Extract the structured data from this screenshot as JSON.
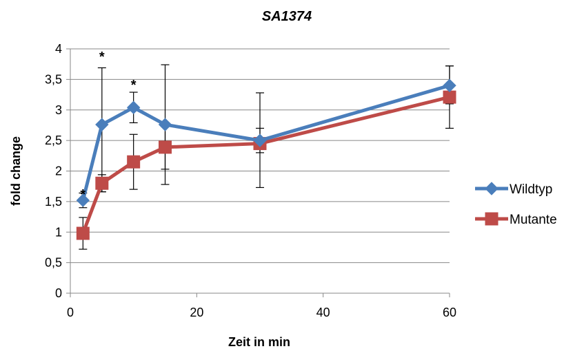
{
  "chart_data": {
    "type": "line",
    "title": "SA1374",
    "xlabel": "Zeit in min",
    "ylabel": "fold change",
    "xlim": [
      0,
      60
    ],
    "ylim": [
      0,
      4
    ],
    "x_ticks": [
      "0",
      "20",
      "40",
      "60"
    ],
    "y_ticks": [
      "0",
      "0,5",
      "1",
      "1,5",
      "2",
      "2,5",
      "3",
      "3,5",
      "4"
    ],
    "grid": true,
    "legend_position": "right",
    "series": [
      {
        "name": "Wildtyp",
        "color": "#4a7ebb",
        "marker": "diamond",
        "x": [
          2,
          5,
          10,
          15,
          30,
          60
        ],
        "y": [
          1.52,
          2.76,
          3.04,
          2.76,
          2.5,
          3.4
        ],
        "err_low": [
          0.12,
          1.1,
          0.25,
          0.98,
          0.2,
          0.3
        ],
        "err_high": [
          0.12,
          0.93,
          0.25,
          0.98,
          0.2,
          0.32
        ]
      },
      {
        "name": "Mutante",
        "color": "#be4b48",
        "marker": "square",
        "x": [
          2,
          5,
          10,
          15,
          30,
          60
        ],
        "y": [
          0.98,
          1.8,
          2.15,
          2.39,
          2.45,
          3.21
        ],
        "err_low": [
          0.26,
          0.14,
          0.45,
          0.36,
          0.72,
          0.51
        ],
        "err_high": [
          0.26,
          0.14,
          0.45,
          0.36,
          0.83,
          0.51
        ]
      }
    ],
    "annotations": [
      {
        "text": "*",
        "x": 2,
        "y": 1.68
      },
      {
        "text": "*",
        "x": 5,
        "y": 3.93
      },
      {
        "text": "*",
        "x": 10,
        "y": 3.47
      }
    ]
  }
}
